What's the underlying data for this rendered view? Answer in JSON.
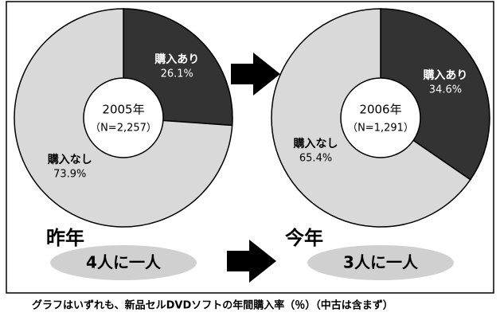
{
  "chart_data": [
    {
      "type": "pie",
      "title": "2005年",
      "subtitle": "（N=2,257）",
      "categories": [
        "購入あり",
        "購入なし"
      ],
      "values": [
        26.1,
        73.9
      ],
      "value_labels": [
        "26.1%",
        "73.9%"
      ],
      "colors": [
        "#333333",
        "#d9d9d9"
      ]
    },
    {
      "type": "pie",
      "title": "2006年",
      "subtitle": "（N=1,291）",
      "categories": [
        "購入あり",
        "購入なし"
      ],
      "values": [
        34.6,
        65.4
      ],
      "value_labels": [
        "34.6%",
        "65.4%"
      ],
      "colors": [
        "#333333",
        "#d9d9d9"
      ]
    }
  ],
  "labels": {
    "last_year": "昨年",
    "last_ratio": "4人に一人",
    "this_year": "今年",
    "this_ratio": "3人に一人"
  },
  "footnote": "グラフはいずれも、新品セルDVDソフトの年間購入率（％）（中古は含まず）"
}
